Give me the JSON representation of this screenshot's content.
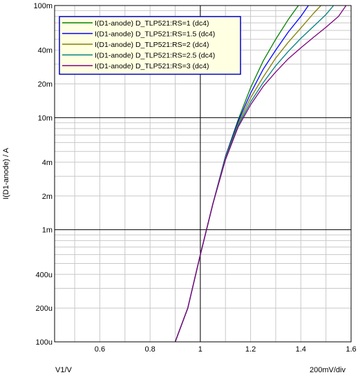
{
  "chart_data": {
    "type": "line",
    "title": "",
    "xlabel": "V1/V",
    "ylabel": "I(D1-anode) / A",
    "x_scale_note": "200mV/div",
    "xlim": [
      0.42,
      1.6
    ],
    "ylim": [
      0.0001,
      0.1
    ],
    "yscale": "log",
    "grid": true,
    "legend_position": "top-left",
    "x_ticks": [
      {
        "value": 0.6,
        "label": "0.6"
      },
      {
        "value": 0.8,
        "label": "0.8"
      },
      {
        "value": 1.0,
        "label": "1"
      },
      {
        "value": 1.2,
        "label": "1.2"
      },
      {
        "value": 1.4,
        "label": "1.4"
      },
      {
        "value": 1.6,
        "label": "1.6"
      }
    ],
    "y_ticks": [
      {
        "value": 0.1,
        "label": "100m"
      },
      {
        "value": 0.04,
        "label": "40m"
      },
      {
        "value": 0.02,
        "label": "20m"
      },
      {
        "value": 0.01,
        "label": "10m"
      },
      {
        "value": 0.004,
        "label": "4m"
      },
      {
        "value": 0.002,
        "label": "2m"
      },
      {
        "value": 0.001,
        "label": "1m"
      },
      {
        "value": 0.0004,
        "label": "400u"
      },
      {
        "value": 0.0002,
        "label": "200u"
      },
      {
        "value": 0.0001,
        "label": "100u"
      }
    ],
    "series": [
      {
        "name": "I(D1-anode) D_TLP521:RS=1 (dc4)",
        "color": "#008000",
        "x": [
          0.9,
          0.95,
          1.0,
          1.05,
          1.1,
          1.15,
          1.2,
          1.25,
          1.3,
          1.35,
          1.39
        ],
        "y": [
          0.0001,
          0.0002,
          0.0006,
          0.0017,
          0.0045,
          0.0095,
          0.0185,
          0.032,
          0.05,
          0.075,
          0.1
        ]
      },
      {
        "name": "I(D1-anode) D_TLP521:RS=1.5 (dc4)",
        "color": "#0000ff",
        "x": [
          0.9,
          0.95,
          1.0,
          1.05,
          1.1,
          1.15,
          1.2,
          1.25,
          1.3,
          1.35,
          1.4,
          1.43
        ],
        "y": [
          0.0001,
          0.0002,
          0.0006,
          0.0017,
          0.0045,
          0.0092,
          0.0165,
          0.027,
          0.04,
          0.058,
          0.08,
          0.1
        ]
      },
      {
        "name": "I(D1-anode) D_TLP521:RS=2 (dc4)",
        "color": "#808000",
        "x": [
          0.9,
          0.95,
          1.0,
          1.05,
          1.1,
          1.15,
          1.2,
          1.25,
          1.3,
          1.35,
          1.4,
          1.45,
          1.48
        ],
        "y": [
          0.0001,
          0.0002,
          0.0006,
          0.0017,
          0.0044,
          0.0088,
          0.015,
          0.023,
          0.034,
          0.047,
          0.063,
          0.085,
          0.1
        ]
      },
      {
        "name": "I(D1-anode) D_TLP521:RS=2.5 (dc4)",
        "color": "#008080",
        "x": [
          0.9,
          0.95,
          1.0,
          1.05,
          1.1,
          1.15,
          1.2,
          1.25,
          1.3,
          1.35,
          1.4,
          1.45,
          1.5,
          1.53
        ],
        "y": [
          0.0001,
          0.0002,
          0.0006,
          0.0017,
          0.0043,
          0.0085,
          0.0138,
          0.0205,
          0.029,
          0.039,
          0.051,
          0.065,
          0.083,
          0.1
        ]
      },
      {
        "name": "I(D1-anode) D_TLP521:RS=3 (dc4)",
        "color": "#800080",
        "x": [
          0.9,
          0.95,
          1.0,
          1.05,
          1.1,
          1.15,
          1.2,
          1.25,
          1.3,
          1.35,
          1.4,
          1.45,
          1.5,
          1.55,
          1.58
        ],
        "y": [
          0.0001,
          0.0002,
          0.0006,
          0.0017,
          0.0042,
          0.0082,
          0.013,
          0.019,
          0.0255,
          0.0335,
          0.042,
          0.052,
          0.064,
          0.08,
          0.1
        ]
      }
    ]
  }
}
